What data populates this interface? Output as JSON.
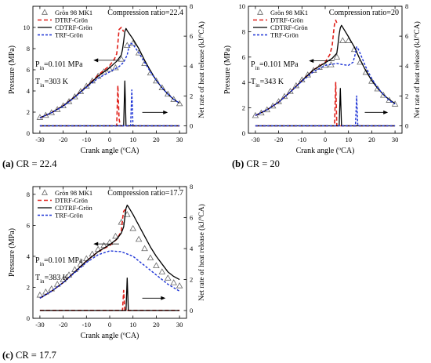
{
  "captions": [
    {
      "letter": "(a)",
      "text": " CR = 22.4"
    },
    {
      "letter": "(b)",
      "text": " CR = 20"
    },
    {
      "letter": "(c)",
      "text": " CR = 17.7"
    }
  ],
  "chart_data": [
    {
      "type": "line",
      "title": "Compression ratio=22.4",
      "xlabel": "Crank angle (ºCA)",
      "ylabel": "Pressure (MPa)",
      "y2label": "Net rate of heat release (kJ/ºCA)",
      "xlim": [
        -33,
        33
      ],
      "ylim": [
        0,
        12
      ],
      "y2lim": [
        -0.5,
        8
      ],
      "xticks": [
        -30,
        -20,
        -10,
        0,
        10,
        20,
        30
      ],
      "yticks": [
        0,
        2,
        4,
        6,
        8,
        10
      ],
      "y2ticks": [
        0,
        2,
        4,
        6,
        8
      ],
      "annotations": [
        "P_in=0.101 MPa",
        "T_in=303 K"
      ],
      "legend": [
        "Grön 98 MK1",
        "DTRF-Grön",
        "CDTRF-Grön",
        "TRF-Grön"
      ],
      "series": [
        {
          "name": "Grön 98 MK1",
          "axis": "left",
          "style": "triangle",
          "x": [
            -30,
            -27.5,
            -25,
            -22.5,
            -20,
            -17.5,
            -15,
            -12.5,
            -10,
            -7.5,
            -5,
            -2.5,
            0,
            2.5,
            5,
            7.5,
            10,
            12.5,
            15,
            17.5,
            20,
            22.5,
            25,
            27.5,
            30
          ],
          "y": [
            1.5,
            1.7,
            1.95,
            2.25,
            2.6,
            3.0,
            3.45,
            3.95,
            4.45,
            4.95,
            5.4,
            5.8,
            6.05,
            6.2,
            7.0,
            8.3,
            8.5,
            7.6,
            6.6,
            5.7,
            4.95,
            4.3,
            3.7,
            3.2,
            2.8
          ]
        },
        {
          "name": "DTRF-Grön",
          "axis": "left",
          "style": "red-dash",
          "x": [
            -30,
            -25,
            -20,
            -15,
            -10,
            -5,
            0,
            2,
            3,
            3.5,
            4,
            5,
            6
          ],
          "y": [
            1.45,
            1.95,
            2.6,
            3.45,
            4.4,
            5.5,
            6.4,
            7.0,
            7.5,
            8.5,
            9.8,
            10.0,
            9.6
          ]
        },
        {
          "name": "CDTRF-Grön",
          "axis": "left",
          "style": "black-solid",
          "x": [
            -30,
            -25,
            -20,
            -15,
            -10,
            -5,
            0,
            3,
            5,
            5.5,
            6,
            6.5,
            7,
            7.5,
            10,
            12.5,
            15,
            17.5,
            20,
            22.5,
            25,
            27.5,
            30
          ],
          "y": [
            1.45,
            1.95,
            2.6,
            3.45,
            4.4,
            5.4,
            6.2,
            6.8,
            7.4,
            7.9,
            8.7,
            9.6,
            9.9,
            9.7,
            8.9,
            8.0,
            6.9,
            5.9,
            5.0,
            4.3,
            3.7,
            3.2,
            2.85
          ]
        },
        {
          "name": "TRF-Grön",
          "axis": "left",
          "style": "blue-dot",
          "x": [
            -30,
            -25,
            -20,
            -15,
            -10,
            -5,
            0,
            4,
            6,
            7.5,
            8.5,
            9,
            10,
            12.5,
            15,
            17.5,
            20,
            22.5,
            25,
            27.5,
            30
          ],
          "y": [
            1.45,
            1.95,
            2.55,
            3.4,
            4.35,
            5.2,
            5.8,
            6.3,
            6.7,
            7.4,
            8.4,
            8.5,
            8.4,
            7.6,
            6.7,
            5.8,
            5.0,
            4.3,
            3.7,
            3.2,
            2.85
          ]
        },
        {
          "name": "DTRF-Grön",
          "axis": "right",
          "style": "red-dash",
          "x": [
            -30,
            0,
            3,
            3.5,
            4,
            4.5,
            30
          ],
          "y": [
            0,
            0,
            0,
            2.7,
            0.5,
            0,
            0
          ]
        },
        {
          "name": "CDTRF-Grön",
          "axis": "right",
          "style": "black-solid",
          "x": [
            -30,
            0,
            6,
            6.5,
            7,
            30
          ],
          "y": [
            0,
            0,
            0,
            3.0,
            0,
            0
          ]
        },
        {
          "name": "TRF-Grön",
          "axis": "right",
          "style": "blue-dot",
          "x": [
            -30,
            0,
            9,
            9.5,
            10,
            30
          ],
          "y": [
            0,
            0,
            0,
            2.4,
            0,
            0
          ]
        }
      ]
    },
    {
      "type": "line",
      "title": "Compression ratio=20",
      "xlabel": "Crank angle (ºCA)",
      "ylabel": "Pressure (MPa)",
      "y2label": "Net rate of heat release (kJ/ºCA)",
      "xlim": [
        -33,
        33
      ],
      "ylim": [
        0,
        10
      ],
      "y2lim": [
        -0.5,
        8
      ],
      "xticks": [
        -30,
        -20,
        -10,
        0,
        10,
        20,
        30
      ],
      "yticks": [
        0,
        2,
        4,
        6,
        8,
        10
      ],
      "y2ticks": [
        0,
        2,
        4,
        6,
        8
      ],
      "annotations": [
        "P_in=0.101 MPa",
        "T_in=343 K"
      ],
      "legend": [
        "Grön 98 MK1",
        "DTRF-Grön",
        "CDTRF-Grön",
        "TRF-Grön"
      ],
      "series": [
        {
          "name": "Grön 98 MK1",
          "axis": "left",
          "style": "triangle",
          "x": [
            -30,
            -27.5,
            -25,
            -22.5,
            -20,
            -17.5,
            -15,
            -12.5,
            -10,
            -7.5,
            -5,
            -2.5,
            0,
            2.5,
            5,
            7.5,
            10,
            12.5,
            15,
            17.5,
            20,
            22.5,
            25,
            27.5,
            30
          ],
          "y": [
            1.4,
            1.6,
            1.85,
            2.15,
            2.5,
            2.9,
            3.3,
            3.75,
            4.2,
            4.6,
            4.95,
            5.2,
            5.35,
            5.4,
            6.0,
            7.3,
            7.3,
            6.6,
            5.6,
            4.8,
            4.1,
            3.5,
            3.0,
            2.6,
            2.3
          ]
        },
        {
          "name": "DTRF-Grön",
          "axis": "left",
          "style": "red-dash",
          "x": [
            -30,
            -25,
            -20,
            -15,
            -10,
            -5,
            0,
            2,
            3,
            3.5,
            4,
            4.5,
            5
          ],
          "y": [
            1.4,
            1.85,
            2.45,
            3.25,
            4.15,
            5.0,
            5.6,
            6.2,
            6.9,
            7.8,
            8.6,
            8.9,
            8.7
          ]
        },
        {
          "name": "CDTRF-Grön",
          "axis": "left",
          "style": "black-solid",
          "x": [
            -30,
            -25,
            -20,
            -15,
            -10,
            -5,
            0,
            3,
            5,
            5.5,
            6,
            6.5,
            7,
            8,
            10,
            12.5,
            15,
            17.5,
            20,
            22.5,
            25,
            27.5,
            30
          ],
          "y": [
            1.4,
            1.85,
            2.45,
            3.25,
            4.15,
            5.0,
            5.55,
            5.9,
            6.3,
            7.0,
            7.8,
            8.3,
            8.5,
            8.2,
            7.6,
            6.8,
            5.8,
            4.9,
            4.15,
            3.55,
            3.05,
            2.65,
            2.35
          ]
        },
        {
          "name": "TRF-Grön",
          "axis": "left",
          "style": "blue-dot",
          "x": [
            -30,
            -25,
            -20,
            -15,
            -10,
            -5,
            0,
            5,
            7.5,
            10,
            12,
            13,
            13.5,
            14,
            15,
            17.5,
            20,
            22.5,
            25,
            27.5,
            30
          ],
          "y": [
            1.4,
            1.85,
            2.45,
            3.25,
            4.1,
            4.85,
            5.35,
            5.5,
            5.4,
            5.35,
            5.6,
            6.3,
            6.8,
            6.7,
            6.3,
            5.2,
            4.3,
            3.6,
            3.05,
            2.6,
            2.3
          ]
        },
        {
          "name": "DTRF-Grön",
          "axis": "right",
          "style": "red-dash",
          "x": [
            -30,
            0,
            4,
            4.5,
            5,
            30
          ],
          "y": [
            0,
            0,
            0,
            2.9,
            0,
            0
          ]
        },
        {
          "name": "CDTRF-Grön",
          "axis": "right",
          "style": "black-solid",
          "x": [
            -30,
            0,
            6,
            6.5,
            7,
            30
          ],
          "y": [
            0,
            0,
            0,
            2.5,
            0,
            0
          ]
        },
        {
          "name": "TRF-Grön",
          "axis": "right",
          "style": "blue-dot",
          "x": [
            -30,
            0,
            13,
            13.5,
            14,
            30
          ],
          "y": [
            0,
            0,
            0,
            2.0,
            0,
            0
          ]
        }
      ]
    },
    {
      "type": "line",
      "title": "Compression ratio=17.7",
      "xlabel": "Crank angle (ºCA)",
      "ylabel": "Pressure (MPa)",
      "y2label": "Net rate of heat release (kJ/ºCA)",
      "xlim": [
        -33,
        33
      ],
      "ylim": [
        0,
        8.5
      ],
      "y2lim": [
        -0.5,
        8
      ],
      "xticks": [
        -30,
        -20,
        -10,
        0,
        10,
        20,
        30
      ],
      "yticks": [
        0,
        2,
        4,
        6,
        8
      ],
      "y2ticks": [
        0,
        2,
        4,
        6,
        8
      ],
      "annotations": [
        "P_in=0.101 MPa",
        "T_in=383 K"
      ],
      "legend": [
        "Grön 98 MK1",
        "DTRF-Grön",
        "CDTRF-Grön",
        "TRF-Grön"
      ],
      "series": [
        {
          "name": "Grön 98 MK1",
          "axis": "left",
          "style": "triangle",
          "x": [
            -30,
            -27.5,
            -25,
            -22.5,
            -20,
            -17.5,
            -15,
            -12.5,
            -10,
            -7.5,
            -5,
            -2.5,
            0,
            2.5,
            5,
            7.5,
            10,
            12.5,
            15,
            17.5,
            20,
            22.5,
            25,
            27.5,
            30
          ],
          "y": [
            1.5,
            1.7,
            1.9,
            2.2,
            2.5,
            2.8,
            3.15,
            3.5,
            3.85,
            4.15,
            4.45,
            4.7,
            4.9,
            5.3,
            6.2,
            6.7,
            5.8,
            5.1,
            4.5,
            3.9,
            3.4,
            3.0,
            2.6,
            2.3,
            2.1
          ]
        },
        {
          "name": "DTRF-Grön",
          "axis": "left",
          "style": "red-dash",
          "x": [
            -30,
            -25,
            -20,
            -15,
            -10,
            -5,
            0,
            3,
            5,
            5.5,
            6,
            6.5,
            7
          ],
          "y": [
            1.3,
            1.75,
            2.3,
            3.0,
            3.7,
            4.3,
            4.7,
            5.1,
            5.6,
            6.4,
            6.9,
            7.0,
            6.9
          ]
        },
        {
          "name": "CDTRF-Grön",
          "axis": "left",
          "style": "black-solid",
          "x": [
            -30,
            -25,
            -20,
            -15,
            -10,
            -5,
            0,
            3,
            5,
            6,
            6.5,
            7,
            7.5,
            8,
            10,
            12.5,
            15,
            17.5,
            20,
            22.5,
            25,
            27.5,
            30
          ],
          "y": [
            1.3,
            1.75,
            2.3,
            3.0,
            3.7,
            4.3,
            4.75,
            5.1,
            5.5,
            5.9,
            6.5,
            7.1,
            7.3,
            7.2,
            6.7,
            6.0,
            5.3,
            4.6,
            4.0,
            3.5,
            3.0,
            2.7,
            2.5
          ]
        },
        {
          "name": "TRF-Grön",
          "axis": "left",
          "style": "blue-dot",
          "x": [
            -30,
            -25,
            -20,
            -15,
            -10,
            -5,
            0,
            5,
            10,
            15,
            20,
            25,
            30
          ],
          "y": [
            1.3,
            1.75,
            2.3,
            2.95,
            3.6,
            4.1,
            4.35,
            4.3,
            4.0,
            3.4,
            2.8,
            2.2,
            1.75
          ]
        },
        {
          "name": "DTRF-Grön",
          "axis": "right",
          "style": "red-dash",
          "x": [
            -30,
            0,
            5.5,
            6,
            6.5,
            30
          ],
          "y": [
            0,
            0,
            0,
            1.3,
            0,
            0
          ]
        },
        {
          "name": "CDTRF-Grön",
          "axis": "right",
          "style": "black-solid",
          "x": [
            -30,
            0,
            7,
            7.5,
            8,
            30
          ],
          "y": [
            0,
            0,
            0,
            2.1,
            0,
            0
          ]
        }
      ]
    }
  ]
}
